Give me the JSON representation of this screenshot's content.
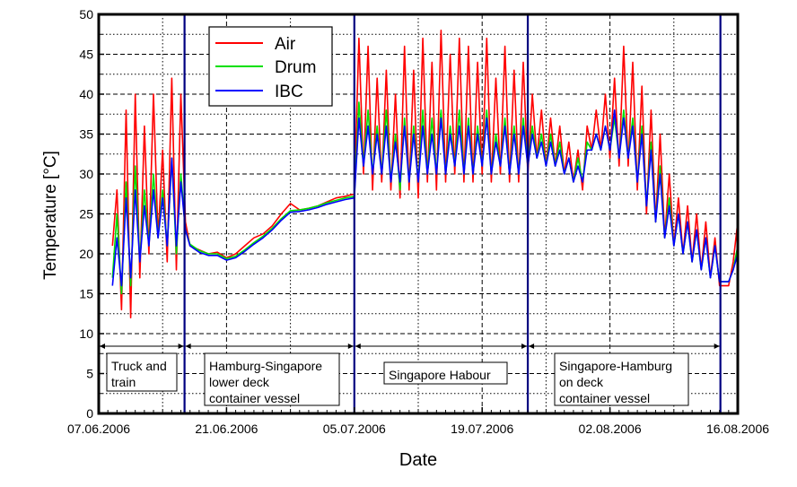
{
  "chart_data": {
    "type": "line",
    "xlabel": "Date",
    "ylabel": "Temperature  [°C]",
    "xlim_days": [
      0,
      70
    ],
    "ylim": [
      0,
      50
    ],
    "x_ticks": [
      {
        "day": 0,
        "label": "07.06.2006"
      },
      {
        "day": 14,
        "label": "21.06.2006"
      },
      {
        "day": 28,
        "label": "05.07.2006"
      },
      {
        "day": 42,
        "label": "19.07.2006"
      },
      {
        "day": 56,
        "label": "02.08.2006"
      },
      {
        "day": 70,
        "label": "16.08.2006"
      }
    ],
    "y_ticks": [
      0,
      5,
      10,
      15,
      20,
      25,
      30,
      35,
      40,
      45,
      50
    ],
    "grid": true,
    "legend": {
      "placement": "top-left-center",
      "entries": [
        "Air",
        "Drum",
        "IBC"
      ]
    },
    "colors": {
      "Air": "#ff0000",
      "Drum": "#00e000",
      "IBC": "#0000ff",
      "phase_line": "#000080"
    },
    "x": [
      1.5,
      2,
      2.5,
      3,
      3.5,
      4,
      4.5,
      5,
      5.5,
      6,
      6.5,
      7,
      7.5,
      8,
      8.5,
      9,
      9.5,
      10,
      11,
      12,
      13,
      14,
      15,
      16,
      17,
      18,
      19,
      20,
      21,
      22,
      23,
      24,
      25,
      26,
      27,
      28,
      28.5,
      29,
      29.5,
      30,
      30.5,
      31,
      31.5,
      32,
      32.5,
      33,
      33.5,
      34,
      34.5,
      35,
      35.5,
      36,
      36.5,
      37,
      37.5,
      38,
      38.5,
      39,
      39.5,
      40,
      40.5,
      41,
      41.5,
      42,
      42.5,
      43,
      43.5,
      44,
      44.5,
      45,
      45.5,
      46,
      46.5,
      47,
      47.5,
      48,
      48.5,
      49,
      49.5,
      50,
      50.5,
      51,
      51.5,
      52,
      52.5,
      53,
      53.5,
      54,
      54.5,
      55,
      55.5,
      56,
      56.5,
      57,
      57.5,
      58,
      58.5,
      59,
      59.5,
      60,
      60.5,
      61,
      61.5,
      62,
      62.5,
      63,
      63.5,
      64,
      64.5,
      65,
      65.5,
      66,
      66.5,
      67,
      67.5,
      68,
      69,
      69.5,
      70
    ],
    "series": [
      {
        "name": "Air",
        "values": [
          21,
          28,
          13,
          38,
          12,
          40,
          17,
          36,
          20,
          40,
          22,
          33,
          19,
          42,
          18,
          40,
          24,
          21,
          20.5,
          20,
          20.2,
          19.5,
          20,
          21,
          22,
          22.5,
          23.5,
          25,
          26.3,
          25.5,
          25.7,
          26,
          26.5,
          27,
          27.2,
          27.5,
          47,
          30,
          46,
          28,
          42,
          29,
          43,
          28,
          40,
          27,
          46,
          28,
          43,
          27,
          47,
          29,
          44,
          28,
          48,
          29,
          45,
          30,
          47,
          29,
          46,
          29,
          44,
          30,
          47,
          29,
          42,
          30,
          46,
          29,
          43,
          29,
          44,
          30,
          40,
          32,
          38,
          31,
          37,
          31,
          36,
          30,
          34,
          29,
          33,
          28,
          36,
          33,
          38,
          33,
          40,
          32,
          42,
          31,
          46,
          31,
          44,
          28,
          41,
          25,
          38,
          24,
          35,
          22,
          30,
          21,
          27,
          20,
          26,
          19,
          25,
          18,
          24,
          17,
          22,
          16,
          16,
          19,
          24
        ]
      },
      {
        "name": "Drum",
        "values": [
          17,
          25,
          15,
          29,
          16,
          31,
          19,
          28,
          21,
          30,
          22,
          28,
          21,
          32,
          20,
          30,
          23,
          21.2,
          20.4,
          20,
          20,
          19.4,
          19.7,
          20.5,
          21.4,
          22.2,
          23.2,
          24.4,
          25.4,
          25.5,
          25.7,
          26,
          26.4,
          26.7,
          27,
          27.2,
          39,
          31,
          38,
          30,
          36,
          30,
          38,
          29,
          35,
          28,
          37,
          29,
          36,
          29,
          38,
          30,
          37,
          30,
          38,
          30,
          36,
          31,
          38,
          30,
          37,
          30,
          36,
          31,
          38,
          30,
          35,
          31,
          37,
          30,
          36,
          30,
          37,
          31,
          36,
          32,
          35,
          31,
          35,
          31,
          34,
          30,
          32,
          29,
          32,
          29,
          34,
          33,
          35,
          33,
          36,
          33,
          37,
          32,
          38,
          32,
          37,
          29,
          36,
          26,
          34,
          24,
          31,
          22,
          27,
          21,
          25,
          20,
          24,
          19,
          23,
          18,
          22,
          17,
          21,
          16.5,
          16.5,
          18,
          21
        ]
      },
      {
        "name": "IBC",
        "values": [
          16,
          22,
          16,
          27,
          17,
          28,
          19,
          26,
          21,
          28,
          22,
          27,
          21,
          32,
          21,
          29,
          23,
          21,
          20.2,
          19.8,
          19.8,
          19.2,
          19.5,
          20.3,
          21.2,
          22,
          23,
          24.2,
          25.2,
          25.3,
          25.5,
          25.8,
          26.2,
          26.5,
          26.8,
          27,
          37,
          31,
          36,
          30,
          35,
          30,
          36,
          29,
          34,
          29,
          36,
          29,
          35,
          29,
          36,
          30,
          35,
          30,
          37,
          30,
          35,
          31,
          36,
          30,
          36,
          30,
          35,
          31,
          37,
          30,
          34,
          31,
          36,
          30,
          35,
          30,
          36,
          31,
          35,
          32,
          34,
          31,
          34,
          31,
          33,
          30,
          32,
          29,
          31,
          29,
          33,
          33,
          35,
          33,
          36,
          33,
          38,
          32,
          37,
          32,
          36,
          29,
          35,
          26,
          33,
          24,
          30,
          22,
          26,
          21,
          25,
          20,
          24,
          19,
          23,
          18,
          22,
          17,
          21,
          16.5,
          16.5,
          18,
          20
        ]
      }
    ],
    "phase_boundaries_days": [
      9.4,
      28,
      47,
      68.1
    ],
    "phases": [
      {
        "lines": [
          "Truck and",
          "train"
        ]
      },
      {
        "lines": [
          "Hamburg-Singapore",
          "lower deck",
          "container vessel"
        ]
      },
      {
        "lines": [
          "Singapore Habour"
        ]
      },
      {
        "lines": [
          "Singapore-Hamburg",
          "on deck",
          "container vessel"
        ]
      }
    ]
  }
}
